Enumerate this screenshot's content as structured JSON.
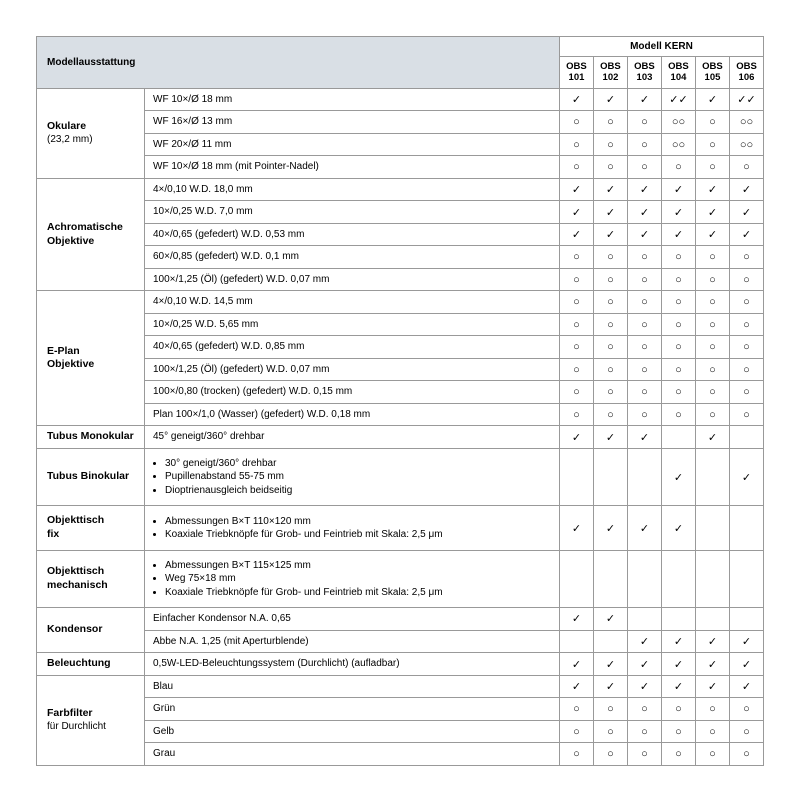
{
  "header": {
    "equipment": "Modellausstattung",
    "modelGroup": "Modell KERN",
    "models": [
      "OBS\n101",
      "OBS\n102",
      "OBS\n103",
      "OBS\n104",
      "OBS\n105",
      "OBS\n106"
    ]
  },
  "symbols": {
    "check": "✓",
    "check2": "✓✓",
    "circle": "○",
    "circle2": "○○",
    "blank": ""
  },
  "sections": [
    {
      "category": "Okulare",
      "subcategory": "(23,2 mm)",
      "rows": [
        {
          "spec": "WF 10×/Ø 18 mm",
          "cells": [
            "check",
            "check",
            "check",
            "check2",
            "check",
            "check2"
          ]
        },
        {
          "spec": "WF 16×/Ø 13 mm",
          "cells": [
            "circle",
            "circle",
            "circle",
            "circle2",
            "circle",
            "circle2"
          ]
        },
        {
          "spec": "WF 20×/Ø 11 mm",
          "cells": [
            "circle",
            "circle",
            "circle",
            "circle2",
            "circle",
            "circle2"
          ]
        },
        {
          "spec": "WF 10×/Ø 18 mm (mit Pointer-Nadel)",
          "cells": [
            "circle",
            "circle",
            "circle",
            "circle",
            "circle",
            "circle"
          ]
        }
      ]
    },
    {
      "category": "Achromatische Objektive",
      "rows": [
        {
          "spec": "4×/0,10 W.D. 18,0 mm",
          "cells": [
            "check",
            "check",
            "check",
            "check",
            "check",
            "check"
          ]
        },
        {
          "spec": "10×/0,25 W.D. 7,0 mm",
          "cells": [
            "check",
            "check",
            "check",
            "check",
            "check",
            "check"
          ]
        },
        {
          "spec": "40×/0,65 (gefedert) W.D. 0,53 mm",
          "cells": [
            "check",
            "check",
            "check",
            "check",
            "check",
            "check"
          ]
        },
        {
          "spec": "60×/0,85 (gefedert) W.D. 0,1 mm",
          "cells": [
            "circle",
            "circle",
            "circle",
            "circle",
            "circle",
            "circle"
          ]
        },
        {
          "spec": "100×/1,25 (Öl) (gefedert) W.D. 0,07 mm",
          "cells": [
            "circle",
            "circle",
            "circle",
            "circle",
            "circle",
            "circle"
          ]
        }
      ]
    },
    {
      "category": "E-Plan Objektive",
      "rows": [
        {
          "spec": "4×/0,10 W.D. 14,5 mm",
          "cells": [
            "circle",
            "circle",
            "circle",
            "circle",
            "circle",
            "circle"
          ]
        },
        {
          "spec": "10×/0,25 W.D. 5,65 mm",
          "cells": [
            "circle",
            "circle",
            "circle",
            "circle",
            "circle",
            "circle"
          ]
        },
        {
          "spec": "40×/0,65 (gefedert) W.D. 0,85 mm",
          "cells": [
            "circle",
            "circle",
            "circle",
            "circle",
            "circle",
            "circle"
          ]
        },
        {
          "spec": "100×/1,25 (Öl) (gefedert) W.D. 0,07 mm",
          "cells": [
            "circle",
            "circle",
            "circle",
            "circle",
            "circle",
            "circle"
          ]
        },
        {
          "spec": "100×/0,80 (trocken) (gefedert) W.D. 0,15 mm",
          "cells": [
            "circle",
            "circle",
            "circle",
            "circle",
            "circle",
            "circle"
          ]
        },
        {
          "spec": "Plan 100×/1,0 (Wasser) (gefedert) W.D. 0,18 mm",
          "cells": [
            "circle",
            "circle",
            "circle",
            "circle",
            "circle",
            "circle"
          ]
        }
      ]
    },
    {
      "category": "Tubus Monokular",
      "rows": [
        {
          "spec": "45° geneigt/360° drehbar",
          "cells": [
            "check",
            "check",
            "check",
            "blank",
            "check",
            "blank"
          ]
        }
      ]
    },
    {
      "category": "Tubus Binokular",
      "tall": true,
      "rows": [
        {
          "specList": [
            "30° geneigt/360° drehbar",
            "Pupillenabstand 55-75 mm",
            "Dioptrienausgleich beidseitig"
          ],
          "cells": [
            "blank",
            "blank",
            "blank",
            "check",
            "blank",
            "check"
          ]
        }
      ]
    },
    {
      "category": "Objekttisch fix",
      "tall": true,
      "rows": [
        {
          "specList": [
            "Abmessungen B×T 110×120 mm",
            "Koaxiale Triebknöpfe für Grob- und Feintrieb mit Skala: 2,5 μm"
          ],
          "cells": [
            "check",
            "check",
            "check",
            "check",
            "blank",
            "blank"
          ]
        }
      ]
    },
    {
      "category": "Objekttisch mechanisch",
      "tall": true,
      "rows": [
        {
          "specList": [
            "Abmessungen B×T 115×125 mm",
            "Weg 75×18 mm",
            "Koaxiale Triebknöpfe für Grob- und Feintrieb mit Skala: 2,5 μm"
          ],
          "cells": [
            "blank",
            "blank",
            "blank",
            "blank",
            "blank",
            "blank"
          ]
        }
      ]
    },
    {
      "category": "Kondensor",
      "rows": [
        {
          "spec": "Einfacher Kondensor N.A. 0,65",
          "cells": [
            "check",
            "check",
            "blank",
            "blank",
            "blank",
            "blank"
          ]
        },
        {
          "spec": "Abbe N.A. 1,25 (mit Aperturblende)",
          "cells": [
            "blank",
            "blank",
            "check",
            "check",
            "check",
            "check"
          ]
        }
      ]
    },
    {
      "category": "Beleuchtung",
      "rows": [
        {
          "spec": "0,5W-LED-Beleuchtungssystem (Durchlicht) (aufladbar)",
          "cells": [
            "check",
            "check",
            "check",
            "check",
            "check",
            "check"
          ]
        }
      ]
    },
    {
      "category": "Farbfilter",
      "subcategory": "für Durchlicht",
      "rows": [
        {
          "spec": "Blau",
          "cells": [
            "check",
            "check",
            "check",
            "check",
            "check",
            "check"
          ]
        },
        {
          "spec": "Grün",
          "cells": [
            "circle",
            "circle",
            "circle",
            "circle",
            "circle",
            "circle"
          ]
        },
        {
          "spec": "Gelb",
          "cells": [
            "circle",
            "circle",
            "circle",
            "circle",
            "circle",
            "circle"
          ]
        },
        {
          "spec": "Grau",
          "cells": [
            "circle",
            "circle",
            "circle",
            "circle",
            "circle",
            "circle"
          ]
        }
      ]
    }
  ]
}
